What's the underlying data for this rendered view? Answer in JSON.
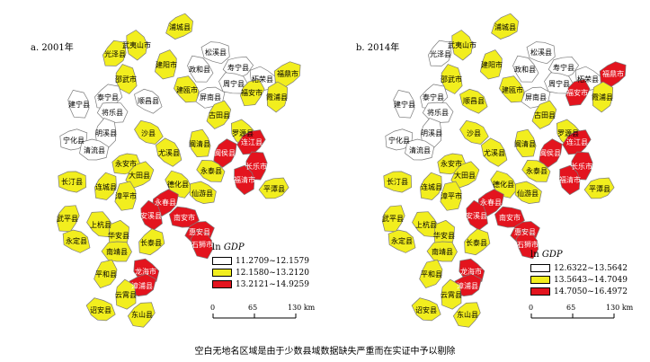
{
  "colors": {
    "white": "#ffffff",
    "yellow": "#f2ee1e",
    "red": "#e3141e",
    "stroke": "#7a7a7a"
  },
  "panels": [
    {
      "label": "a. 2001年",
      "legend": {
        "title_prefix": "ln",
        "title_var": "GDP",
        "items": [
          {
            "label": "11.2709~12.1579",
            "color": "white"
          },
          {
            "label": "12.1580~13.2120",
            "color": "yellow"
          },
          {
            "label": "13.2121~14.9259",
            "color": "red"
          }
        ]
      },
      "scale": {
        "labels": [
          "0",
          "65",
          "130 km"
        ]
      },
      "counties": [
        {
          "name": "浦城县",
          "class": "yellow"
        },
        {
          "name": "武夷山市",
          "class": "yellow"
        },
        {
          "name": "松溪县",
          "class": "white"
        },
        {
          "name": "光泽县",
          "class": "yellow"
        },
        {
          "name": "政和县",
          "class": "white"
        },
        {
          "name": "寿宁县",
          "class": "white"
        },
        {
          "name": "建阳市",
          "class": "yellow"
        },
        {
          "name": "柘荣县",
          "class": "white"
        },
        {
          "name": "福鼎市",
          "class": "yellow"
        },
        {
          "name": "邵武市",
          "class": "yellow"
        },
        {
          "name": "周宁县",
          "class": "white"
        },
        {
          "name": "福安市",
          "class": "yellow"
        },
        {
          "name": "建瓯市",
          "class": "yellow"
        },
        {
          "name": "屏南县",
          "class": "white"
        },
        {
          "name": "霞浦县",
          "class": "yellow"
        },
        {
          "name": "顺昌县",
          "class": "white"
        },
        {
          "name": "泰宁县",
          "class": "white"
        },
        {
          "name": "建宁县",
          "class": "white"
        },
        {
          "name": "将乐县",
          "class": "white"
        },
        {
          "name": "古田县",
          "class": "yellow"
        },
        {
          "name": "罗源县",
          "class": "yellow"
        },
        {
          "name": "宁化县",
          "class": "white"
        },
        {
          "name": "明溪县",
          "class": "white"
        },
        {
          "name": "沙县",
          "class": "yellow"
        },
        {
          "name": "连江县",
          "class": "red"
        },
        {
          "name": "闽清县",
          "class": "yellow"
        },
        {
          "name": "清流县",
          "class": "white"
        },
        {
          "name": "闽侯县",
          "class": "red"
        },
        {
          "name": "尤溪县",
          "class": "yellow"
        },
        {
          "name": "永安市",
          "class": "yellow"
        },
        {
          "name": "长乐市",
          "class": "red"
        },
        {
          "name": "永泰县",
          "class": "yellow"
        },
        {
          "name": "大田县",
          "class": "yellow"
        },
        {
          "name": "福清市",
          "class": "red"
        },
        {
          "name": "长汀县",
          "class": "yellow"
        },
        {
          "name": "连城县",
          "class": "yellow"
        },
        {
          "name": "德化县",
          "class": "yellow"
        },
        {
          "name": "平潭县",
          "class": "yellow"
        },
        {
          "name": "漳平市",
          "class": "yellow"
        },
        {
          "name": "仙游县",
          "class": "yellow"
        },
        {
          "name": "永春县",
          "class": "red"
        },
        {
          "name": "安溪县",
          "class": "red"
        },
        {
          "name": "南安市",
          "class": "red"
        },
        {
          "name": "武平县",
          "class": "yellow"
        },
        {
          "name": "上杭县",
          "class": "yellow"
        },
        {
          "name": "惠安县",
          "class": "red"
        },
        {
          "name": "华安县",
          "class": "yellow"
        },
        {
          "name": "永定县",
          "class": "yellow"
        },
        {
          "name": "长泰县",
          "class": "yellow"
        },
        {
          "name": "石狮市",
          "class": "red"
        },
        {
          "name": "南靖县",
          "class": "yellow"
        },
        {
          "name": "平和县",
          "class": "yellow"
        },
        {
          "name": "龙海市",
          "class": "red"
        },
        {
          "name": "漳浦县",
          "class": "red"
        },
        {
          "name": "云霄县",
          "class": "yellow"
        },
        {
          "name": "诏安县",
          "class": "yellow"
        },
        {
          "name": "东山县",
          "class": "yellow"
        }
      ]
    },
    {
      "label": "b. 2014年",
      "legend": {
        "title_prefix": "ln",
        "title_var": "GDP",
        "items": [
          {
            "label": "12.6322~13.5642",
            "color": "white"
          },
          {
            "label": "13.5643~14.7049",
            "color": "yellow"
          },
          {
            "label": "14.7050~16.4972",
            "color": "red"
          }
        ]
      },
      "scale": {
        "labels": [
          "0",
          "65",
          "130 km"
        ]
      },
      "counties": [
        {
          "name": "浦城县",
          "class": "yellow"
        },
        {
          "name": "武夷山市",
          "class": "yellow"
        },
        {
          "name": "松溪县",
          "class": "white"
        },
        {
          "name": "光泽县",
          "class": "white"
        },
        {
          "name": "政和县",
          "class": "white"
        },
        {
          "name": "寿宁县",
          "class": "white"
        },
        {
          "name": "建阳市",
          "class": "yellow"
        },
        {
          "name": "柘荣县",
          "class": "white"
        },
        {
          "name": "福鼎市",
          "class": "red"
        },
        {
          "name": "邵武市",
          "class": "yellow"
        },
        {
          "name": "周宁县",
          "class": "white"
        },
        {
          "name": "福安市",
          "class": "red"
        },
        {
          "name": "建瓯市",
          "class": "yellow"
        },
        {
          "name": "屏南县",
          "class": "white"
        },
        {
          "name": "霞浦县",
          "class": "yellow"
        },
        {
          "name": "顺昌县",
          "class": "yellow"
        },
        {
          "name": "泰宁县",
          "class": "white"
        },
        {
          "name": "建宁县",
          "class": "white"
        },
        {
          "name": "将乐县",
          "class": "white"
        },
        {
          "name": "古田县",
          "class": "yellow"
        },
        {
          "name": "罗源县",
          "class": "yellow"
        },
        {
          "name": "宁化县",
          "class": "white"
        },
        {
          "name": "明溪县",
          "class": "white"
        },
        {
          "name": "沙县",
          "class": "yellow"
        },
        {
          "name": "连江县",
          "class": "red"
        },
        {
          "name": "闽清县",
          "class": "yellow"
        },
        {
          "name": "清流县",
          "class": "white"
        },
        {
          "name": "闽侯县",
          "class": "red"
        },
        {
          "name": "尤溪县",
          "class": "yellow"
        },
        {
          "name": "永安市",
          "class": "yellow"
        },
        {
          "name": "长乐市",
          "class": "red"
        },
        {
          "name": "永泰县",
          "class": "yellow"
        },
        {
          "name": "大田县",
          "class": "yellow"
        },
        {
          "name": "福清市",
          "class": "red"
        },
        {
          "name": "长汀县",
          "class": "yellow"
        },
        {
          "name": "连城县",
          "class": "yellow"
        },
        {
          "name": "德化县",
          "class": "yellow"
        },
        {
          "name": "平潭县",
          "class": "yellow"
        },
        {
          "name": "漳平市",
          "class": "yellow"
        },
        {
          "name": "仙游县",
          "class": "yellow"
        },
        {
          "name": "永春县",
          "class": "red"
        },
        {
          "name": "安溪县",
          "class": "red"
        },
        {
          "name": "南安市",
          "class": "red"
        },
        {
          "name": "武平县",
          "class": "yellow"
        },
        {
          "name": "上杭县",
          "class": "yellow"
        },
        {
          "name": "惠安县",
          "class": "red"
        },
        {
          "name": "华安县",
          "class": "yellow"
        },
        {
          "name": "永定县",
          "class": "yellow"
        },
        {
          "name": "长泰县",
          "class": "yellow"
        },
        {
          "name": "石狮市",
          "class": "red"
        },
        {
          "name": "南靖县",
          "class": "yellow"
        },
        {
          "name": "平和县",
          "class": "yellow"
        },
        {
          "name": "龙海市",
          "class": "red"
        },
        {
          "name": "漳浦县",
          "class": "red"
        },
        {
          "name": "云霄县",
          "class": "yellow"
        },
        {
          "name": "诏安县",
          "class": "yellow"
        },
        {
          "name": "东山县",
          "class": "yellow"
        }
      ]
    }
  ],
  "footnote": "空白无地名区域是由于少数县域数据缺失严重而在实证中予以剔除"
}
